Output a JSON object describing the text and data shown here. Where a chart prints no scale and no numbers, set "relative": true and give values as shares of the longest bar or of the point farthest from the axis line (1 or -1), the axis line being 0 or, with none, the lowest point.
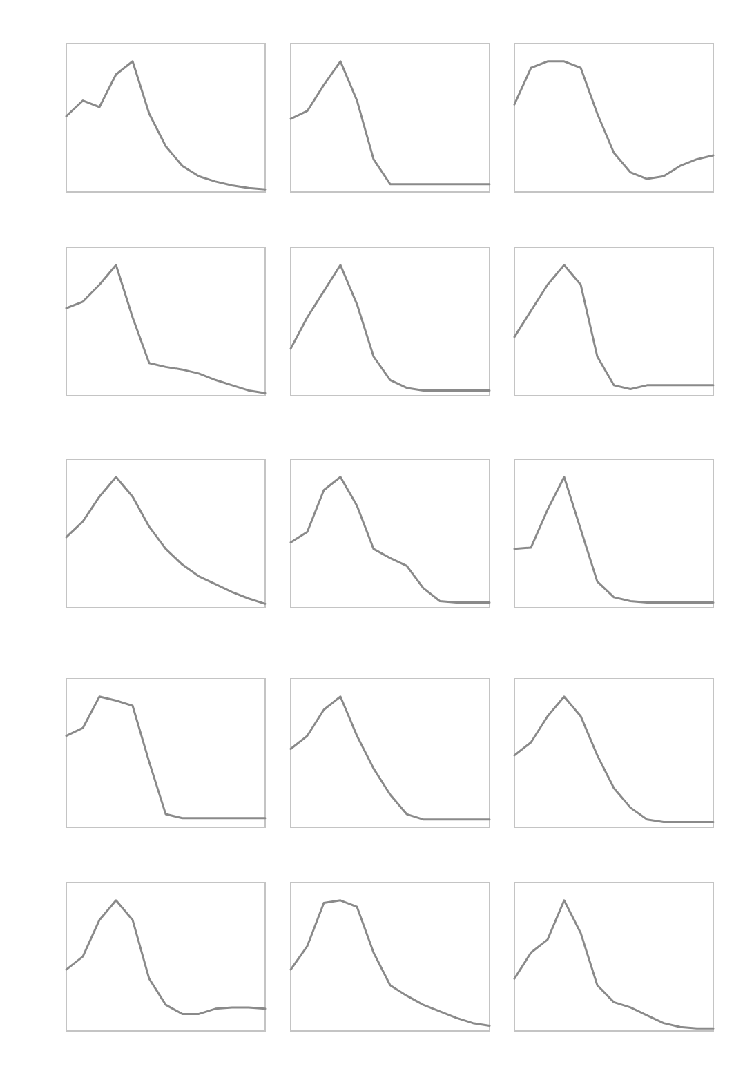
{
  "chart_data": [
    {
      "type": "line",
      "relative": true,
      "categories": [
        null,
        null,
        null,
        null,
        null,
        null,
        null,
        null,
        null,
        null,
        null,
        null,
        null
      ],
      "series": [
        {
          "color": "#8a8a8a",
          "values": [
            0.58,
            0.7,
            0.65,
            0.9,
            1.0,
            0.6,
            0.35,
            0.2,
            0.12,
            0.08,
            0.05,
            0.03,
            0.02
          ]
        }
      ]
    },
    {
      "type": "line",
      "relative": true,
      "categories": [
        null,
        null,
        null,
        null,
        null,
        null,
        null,
        null,
        null,
        null,
        null,
        null,
        null
      ],
      "series": [
        {
          "color": "#8a8a8a",
          "values": [
            0.56,
            0.62,
            0.82,
            1.0,
            0.7,
            0.25,
            0.06,
            0.06,
            0.06,
            0.06,
            0.06,
            0.06,
            0.06
          ]
        }
      ]
    },
    {
      "type": "line",
      "relative": true,
      "categories": [
        null,
        null,
        null,
        null,
        null,
        null,
        null,
        null,
        null,
        null,
        null,
        null,
        null
      ],
      "series": [
        {
          "color": "#8a8a8a",
          "values": [
            0.67,
            0.95,
            1.0,
            1.0,
            0.95,
            0.6,
            0.3,
            0.15,
            0.1,
            0.12,
            0.2,
            0.25,
            0.28
          ]
        }
      ]
    },
    {
      "type": "line",
      "relative": true,
      "categories": [
        null,
        null,
        null,
        null,
        null,
        null,
        null,
        null,
        null,
        null,
        null,
        null,
        null
      ],
      "series": [
        {
          "color": "#8a8a8a",
          "values": [
            0.67,
            0.72,
            0.85,
            1.0,
            0.6,
            0.25,
            0.22,
            0.2,
            0.17,
            0.12,
            0.08,
            0.04,
            0.02
          ]
        }
      ]
    },
    {
      "type": "line",
      "relative": true,
      "categories": [
        null,
        null,
        null,
        null,
        null,
        null,
        null,
        null,
        null,
        null,
        null,
        null,
        null
      ],
      "series": [
        {
          "color": "#8a8a8a",
          "values": [
            0.36,
            0.6,
            0.8,
            1.0,
            0.7,
            0.3,
            0.12,
            0.06,
            0.04,
            0.04,
            0.04,
            0.04,
            0.04
          ]
        }
      ]
    },
    {
      "type": "line",
      "relative": true,
      "categories": [
        null,
        null,
        null,
        null,
        null,
        null,
        null,
        null,
        null,
        null,
        null,
        null,
        null
      ],
      "series": [
        {
          "color": "#8a8a8a",
          "values": [
            0.45,
            0.65,
            0.85,
            1.0,
            0.85,
            0.3,
            0.08,
            0.05,
            0.08,
            0.08,
            0.08,
            0.08,
            0.08
          ]
        }
      ]
    },
    {
      "type": "line",
      "relative": true,
      "categories": [
        null,
        null,
        null,
        null,
        null,
        null,
        null,
        null,
        null,
        null,
        null,
        null,
        null
      ],
      "series": [
        {
          "color": "#8a8a8a",
          "values": [
            0.54,
            0.66,
            0.85,
            1.0,
            0.85,
            0.62,
            0.45,
            0.33,
            0.24,
            0.18,
            0.12,
            0.07,
            0.03
          ]
        }
      ]
    },
    {
      "type": "line",
      "relative": true,
      "categories": [
        null,
        null,
        null,
        null,
        null,
        null,
        null,
        null,
        null,
        null,
        null,
        null,
        null
      ],
      "series": [
        {
          "color": "#8a8a8a",
          "values": [
            0.5,
            0.58,
            0.9,
            1.0,
            0.78,
            0.45,
            0.38,
            0.32,
            0.15,
            0.05,
            0.04,
            0.04,
            0.04
          ]
        }
      ]
    },
    {
      "type": "line",
      "relative": true,
      "categories": [
        null,
        null,
        null,
        null,
        null,
        null,
        null,
        null,
        null,
        null,
        null,
        null,
        null
      ],
      "series": [
        {
          "color": "#8a8a8a",
          "values": [
            0.45,
            0.46,
            0.75,
            1.0,
            0.6,
            0.2,
            0.08,
            0.05,
            0.04,
            0.04,
            0.04,
            0.04,
            0.04
          ]
        }
      ]
    },
    {
      "type": "line",
      "relative": true,
      "categories": [
        null,
        null,
        null,
        null,
        null,
        null,
        null,
        null,
        null,
        null,
        null,
        null,
        null
      ],
      "series": [
        {
          "color": "#8a8a8a",
          "values": [
            0.7,
            0.76,
            1.0,
            0.97,
            0.93,
            0.5,
            0.1,
            0.07,
            0.07,
            0.07,
            0.07,
            0.07,
            0.07
          ]
        }
      ]
    },
    {
      "type": "line",
      "relative": true,
      "categories": [
        null,
        null,
        null,
        null,
        null,
        null,
        null,
        null,
        null,
        null,
        null,
        null,
        null
      ],
      "series": [
        {
          "color": "#8a8a8a",
          "values": [
            0.6,
            0.7,
            0.9,
            1.0,
            0.7,
            0.45,
            0.25,
            0.1,
            0.06,
            0.06,
            0.06,
            0.06,
            0.06
          ]
        }
      ]
    },
    {
      "type": "line",
      "relative": true,
      "categories": [
        null,
        null,
        null,
        null,
        null,
        null,
        null,
        null,
        null,
        null,
        null,
        null,
        null
      ],
      "series": [
        {
          "color": "#8a8a8a",
          "values": [
            0.55,
            0.65,
            0.85,
            1.0,
            0.85,
            0.55,
            0.3,
            0.15,
            0.06,
            0.04,
            0.04,
            0.04,
            0.04
          ]
        }
      ]
    },
    {
      "type": "line",
      "relative": true,
      "categories": [
        null,
        null,
        null,
        null,
        null,
        null,
        null,
        null,
        null,
        null,
        null,
        null,
        null
      ],
      "series": [
        {
          "color": "#8a8a8a",
          "values": [
            0.47,
            0.57,
            0.85,
            1.0,
            0.85,
            0.4,
            0.2,
            0.13,
            0.13,
            0.17,
            0.18,
            0.18,
            0.17
          ]
        }
      ]
    },
    {
      "type": "line",
      "relative": true,
      "categories": [
        null,
        null,
        null,
        null,
        null,
        null,
        null,
        null,
        null,
        null,
        null,
        null,
        null
      ],
      "series": [
        {
          "color": "#8a8a8a",
          "values": [
            0.47,
            0.65,
            0.98,
            1.0,
            0.95,
            0.6,
            0.35,
            0.27,
            0.2,
            0.15,
            0.1,
            0.06,
            0.04
          ]
        }
      ]
    },
    {
      "type": "line",
      "relative": true,
      "categories": [
        null,
        null,
        null,
        null,
        null,
        null,
        null,
        null,
        null,
        null,
        null,
        null,
        null
      ],
      "series": [
        {
          "color": "#8a8a8a",
          "values": [
            0.4,
            0.6,
            0.7,
            1.0,
            0.75,
            0.35,
            0.22,
            0.18,
            0.12,
            0.06,
            0.03,
            0.02,
            0.02
          ]
        }
      ]
    }
  ]
}
